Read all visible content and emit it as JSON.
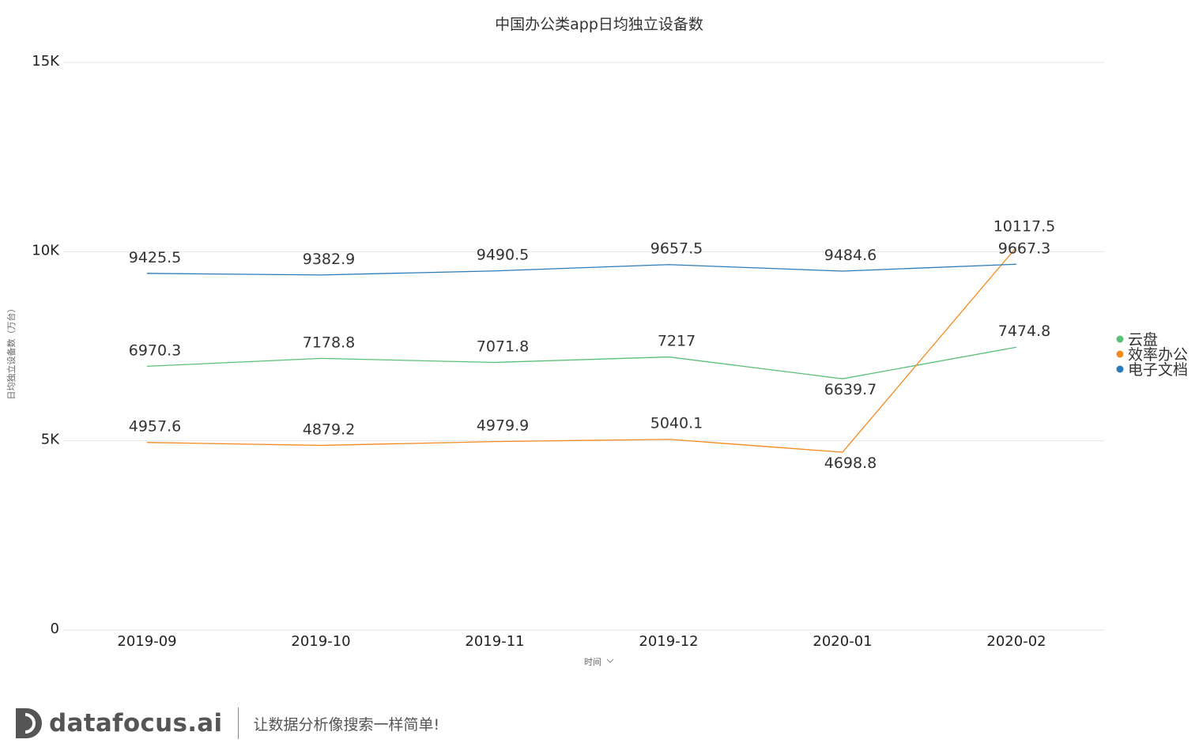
{
  "chart_data": {
    "type": "line",
    "title": "中国办公类app日均独立设备数",
    "xlabel": "时间",
    "ylabel": "日均独立设备数（万台）",
    "categories": [
      "2019-09",
      "2019-10",
      "2019-11",
      "2019-12",
      "2020-01",
      "2020-02"
    ],
    "ylim": [
      0,
      15000
    ],
    "yticks": [
      {
        "value": 0,
        "label": "0"
      },
      {
        "value": 5000,
        "label": "5K"
      },
      {
        "value": 10000,
        "label": "10K"
      },
      {
        "value": 15000,
        "label": "15K"
      }
    ],
    "grid": true,
    "legend_position": "right",
    "series": [
      {
        "name": "云盘",
        "color": "#5cbf7a",
        "values": [
          6970.3,
          7178.8,
          7071.8,
          7217,
          6639.7,
          7474.8
        ],
        "labels": [
          "6970.3",
          "7178.8",
          "7071.8",
          "7217",
          "6639.7",
          "7474.8"
        ]
      },
      {
        "name": "效率办公",
        "color": "#f58a1f",
        "values": [
          4957.6,
          4879.2,
          4979.9,
          5040.1,
          4698.8,
          10117.5
        ],
        "labels": [
          "4957.6",
          "4879.2",
          "4979.9",
          "5040.1",
          "4698.8",
          "10117.5"
        ]
      },
      {
        "name": "电子文档",
        "color": "#2b7bb9",
        "values": [
          9425.5,
          9382.9,
          9490.5,
          9657.5,
          9484.6,
          9667.3
        ],
        "labels": [
          "9425.5",
          "9382.9",
          "9490.5",
          "9657.5",
          "9484.6",
          "9667.3"
        ]
      }
    ]
  },
  "footer": {
    "brand": "datafocus.ai",
    "slogan": "让数据分析像搜索一样简单!"
  },
  "icons": {
    "axis_dropdown": "chevron-down-icon",
    "logo": "datafocus-logo-icon"
  }
}
